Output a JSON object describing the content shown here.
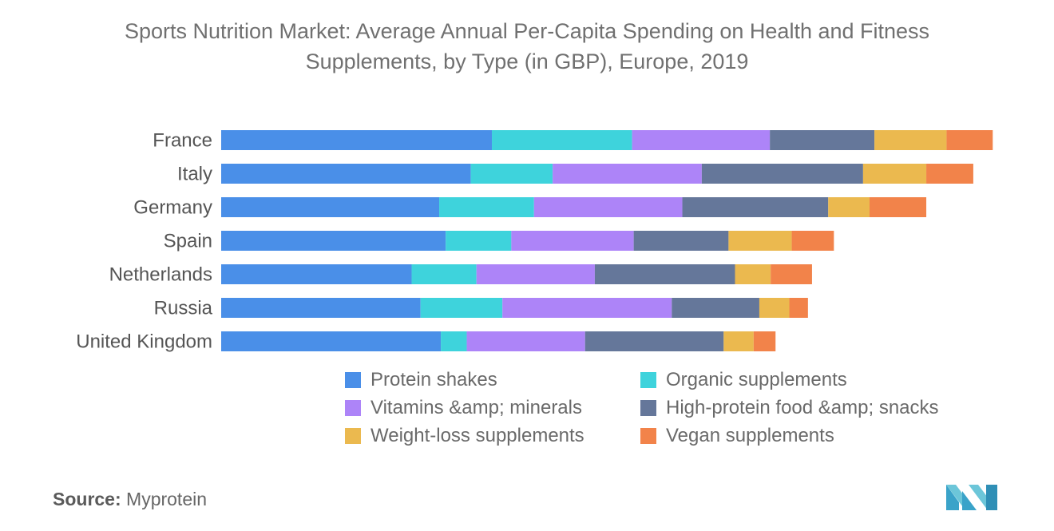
{
  "title_line1": "Sports Nutrition Market: Average Annual Per-Capita Spending on Health and Fitness",
  "title_line2": "Supplements, by Type (in GBP), Europe, 2019",
  "source_label": "Source:",
  "source_value": "Myprotein",
  "chart_data": {
    "type": "bar",
    "orientation": "horizontal",
    "stacked": true,
    "title": "Sports Nutrition Market: Average Annual Per-Capita Spending on Health and Fitness Supplements, by Type (in GBP), Europe, 2019",
    "xlabel": "",
    "ylabel": "",
    "grid": false,
    "legend_position": "bottom",
    "categories": [
      "France",
      "Italy",
      "Germany",
      "Spain",
      "Netherlands",
      "Russia",
      "United Kingdom"
    ],
    "series": [
      {
        "name": "Protein shakes",
        "color": "#4a8fe8",
        "values": [
          33.4,
          30.8,
          26.9,
          27.7,
          23.5,
          24.6,
          27.1
        ]
      },
      {
        "name": "Organic supplements",
        "color": "#3ed3dc",
        "values": [
          17.3,
          10.1,
          11.7,
          8.1,
          8.0,
          10.1,
          3.2
        ]
      },
      {
        "name": "Vitamins &amp; minerals",
        "color": "#ad84f8",
        "values": [
          17.0,
          18.4,
          18.3,
          15.1,
          14.6,
          20.9,
          14.6
        ]
      },
      {
        "name": "High-protein food &amp; snacks",
        "color": "#65779a",
        "values": [
          12.9,
          19.9,
          18.0,
          11.7,
          17.3,
          10.8,
          17.1
        ]
      },
      {
        "name": "Weight-loss supplements",
        "color": "#ebb94f",
        "values": [
          8.9,
          7.8,
          5.1,
          7.8,
          4.4,
          3.7,
          3.7
        ]
      },
      {
        "name": "Vegan supplements",
        "color": "#f2834a",
        "values": [
          5.7,
          5.8,
          7.0,
          5.2,
          5.1,
          2.3,
          2.7
        ]
      }
    ],
    "xlim": [
      0,
      100
    ]
  }
}
